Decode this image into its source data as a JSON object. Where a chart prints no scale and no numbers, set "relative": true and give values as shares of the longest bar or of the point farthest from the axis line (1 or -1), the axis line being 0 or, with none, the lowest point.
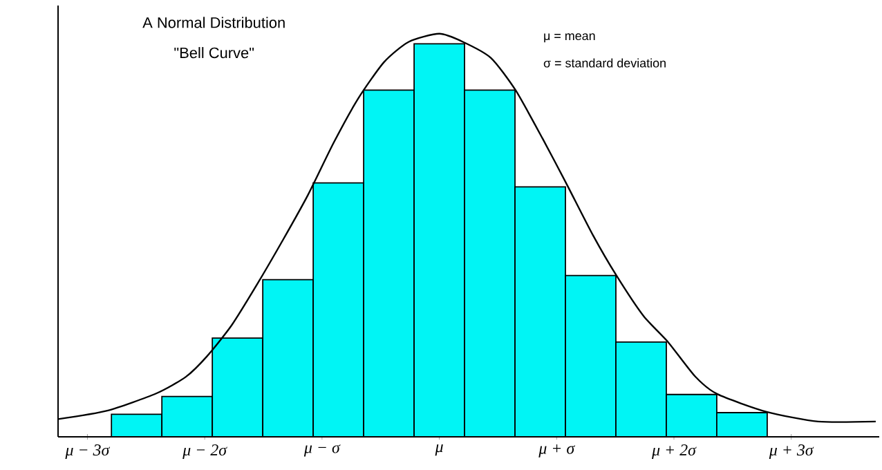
{
  "chart_data": {
    "type": "histogram",
    "title": "A Normal Distribution",
    "subtitle": "\"Bell Curve\"",
    "annotations": [
      "μ = mean",
      "σ = standard deviation"
    ],
    "relative": true,
    "color": "#00f5f5",
    "bins": [
      -2.795,
      -2.365,
      -1.935,
      -1.505,
      -1.075,
      -0.645,
      -0.215,
      0.215,
      0.645,
      1.075,
      1.505,
      1.935,
      2.365,
      2.795
    ],
    "values": [
      0.056,
      0.1,
      0.245,
      0.39,
      0.63,
      0.86,
      0.975,
      0.86,
      0.62,
      0.4,
      0.235,
      0.105,
      0.06
    ],
    "series": [
      {
        "type": "line",
        "color": "#000000",
        "x": [
          -3.25,
          -2.83,
          -2.41,
          -2.16,
          -1.98,
          -1.77,
          -1.55,
          -1.33,
          -1.12,
          -0.9,
          -0.69,
          -0.47,
          -0.26,
          0.0,
          0.2,
          0.44,
          0.65,
          0.88,
          1.08,
          1.31,
          1.51,
          1.74,
          1.95,
          2.18,
          2.37,
          2.79,
          3.23,
          3.72
        ],
        "values": [
          0.044,
          0.065,
          0.108,
          0.149,
          0.2,
          0.277,
          0.38,
          0.49,
          0.6,
          0.73,
          0.84,
          0.93,
          0.98,
          1.0,
          0.98,
          0.94,
          0.86,
          0.74,
          0.63,
          0.5,
          0.4,
          0.3,
          0.235,
          0.15,
          0.106,
          0.062,
          0.038,
          0.038
        ]
      }
    ],
    "xlim": [
      -3.25,
      3.75
    ],
    "xticks": [
      {
        "value": -3,
        "label": "μ − 3σ"
      },
      {
        "value": -2,
        "label": "μ − 2σ"
      },
      {
        "value": -1,
        "label": "μ − σ"
      },
      {
        "value": 0,
        "label": "μ"
      },
      {
        "value": 1,
        "label": "μ + σ"
      },
      {
        "value": 2,
        "label": "μ + 2σ"
      },
      {
        "value": 3,
        "label": "μ + 3σ"
      }
    ],
    "grid": false
  }
}
